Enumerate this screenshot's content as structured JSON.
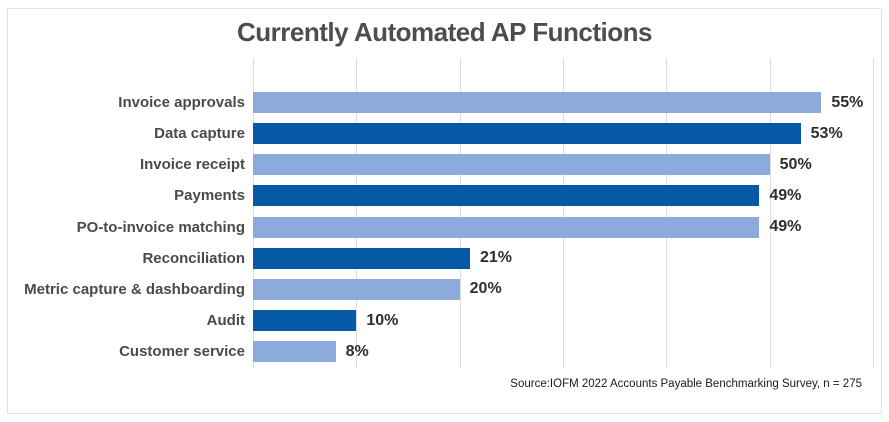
{
  "title": "Currently Automated AP Functions",
  "source_note": "Source:IOFM 2022 Accounts Payable Benchmarking Survey, n = 275",
  "colors": {
    "bar_light": "#8cabdc",
    "bar_dark": "#0659a4",
    "gridline": "#dcdcdc",
    "frame_border": "#e3e3e3",
    "title_text": "#4d4d4d",
    "category_text": "#4a4a4a",
    "value_text": "#2e2e2e",
    "source_text": "#1a1a1a"
  },
  "chart_data": {
    "type": "bar",
    "orientation": "horizontal",
    "title": "Currently Automated AP Functions",
    "categories": [
      "Invoice approvals",
      "Data capture",
      "Invoice receipt",
      "Payments",
      "PO-to-invoice matching",
      "Reconciliation",
      "Metric capture & dashboarding",
      "Audit",
      "Customer service"
    ],
    "values": [
      55,
      53,
      50,
      49,
      49,
      21,
      20,
      10,
      8
    ],
    "value_labels": [
      "55%",
      "53%",
      "50%",
      "49%",
      "49%",
      "21%",
      "20%",
      "10%",
      "8%"
    ],
    "bar_color_keys": [
      "bar_light",
      "bar_dark",
      "bar_light",
      "bar_dark",
      "bar_light",
      "bar_dark",
      "bar_light",
      "bar_dark",
      "bar_light"
    ],
    "xlim": [
      0,
      60
    ],
    "gridline_interval": 10,
    "grid": true,
    "legend": false,
    "xlabel": "",
    "ylabel": "",
    "annotation": "Source:IOFM 2022 Accounts Payable Benchmarking Survey, n = 275"
  }
}
